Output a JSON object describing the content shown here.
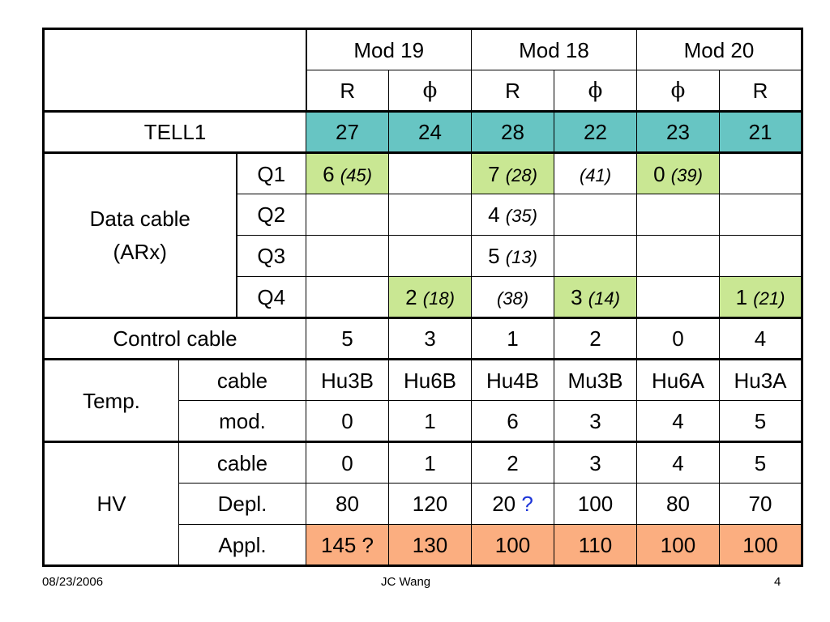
{
  "header": {
    "mods": [
      "Mod 19",
      "Mod 18",
      "Mod 20"
    ],
    "sub": [
      "R",
      "ϕ",
      "R",
      "ϕ",
      "ϕ",
      "R"
    ]
  },
  "tell1": {
    "label": "TELL1",
    "values": [
      "27",
      "24",
      "28",
      "22",
      "23",
      "21"
    ]
  },
  "data_cable": {
    "label_line1": "Data cable",
    "label_line2": "(ARx)",
    "rows": [
      {
        "q": "Q1",
        "cells": [
          {
            "main": "6",
            "paren": "(45)",
            "hl": "green"
          },
          {
            "main": "",
            "paren": "",
            "hl": ""
          },
          {
            "main": "7",
            "paren": "(28)",
            "hl": "green"
          },
          {
            "main": "",
            "paren": "(41)",
            "hl": ""
          },
          {
            "main": "0",
            "paren": "(39)",
            "hl": "green"
          },
          {
            "main": "",
            "paren": "",
            "hl": ""
          }
        ]
      },
      {
        "q": "Q2",
        "cells": [
          {
            "main": "",
            "paren": "",
            "hl": ""
          },
          {
            "main": "",
            "paren": "",
            "hl": ""
          },
          {
            "main": "4",
            "paren": "(35)",
            "hl": ""
          },
          {
            "main": "",
            "paren": "",
            "hl": ""
          },
          {
            "main": "",
            "paren": "",
            "hl": ""
          },
          {
            "main": "",
            "paren": "",
            "hl": ""
          }
        ]
      },
      {
        "q": "Q3",
        "cells": [
          {
            "main": "",
            "paren": "",
            "hl": ""
          },
          {
            "main": "",
            "paren": "",
            "hl": ""
          },
          {
            "main": "5",
            "paren": "(13)",
            "hl": ""
          },
          {
            "main": "",
            "paren": "",
            "hl": ""
          },
          {
            "main": "",
            "paren": "",
            "hl": ""
          },
          {
            "main": "",
            "paren": "",
            "hl": ""
          }
        ]
      },
      {
        "q": "Q4",
        "cells": [
          {
            "main": "",
            "paren": "",
            "hl": ""
          },
          {
            "main": "2",
            "paren": "(18)",
            "hl": "green"
          },
          {
            "main": "",
            "paren": "(38)",
            "hl": ""
          },
          {
            "main": "3",
            "paren": "(14)",
            "hl": "green"
          },
          {
            "main": "",
            "paren": "",
            "hl": ""
          },
          {
            "main": "1",
            "paren": "(21)",
            "hl": "green"
          }
        ]
      }
    ]
  },
  "control_cable": {
    "label": "Control cable",
    "values": [
      "5",
      "3",
      "1",
      "2",
      "0",
      "4"
    ]
  },
  "temp": {
    "label": "Temp.",
    "cable_label": "cable",
    "cable_values": [
      "Hu3B",
      "Hu6B",
      "Hu4B",
      "Mu3B",
      "Hu6A",
      "Hu3A"
    ],
    "mod_label": "mod.",
    "mod_values": [
      "0",
      "1",
      "6",
      "3",
      "4",
      "5"
    ]
  },
  "hv": {
    "label": "HV",
    "cable_label": "cable",
    "cable_values": [
      "0",
      "1",
      "2",
      "3",
      "4",
      "5"
    ],
    "depl_label": "Depl.",
    "depl_values": [
      "80",
      "120",
      "20",
      "100",
      "80",
      "70"
    ],
    "depl_question": "?",
    "appl_label": "Appl.",
    "appl_values": [
      "145 ?",
      "130",
      "100",
      "110",
      "100",
      "100"
    ]
  },
  "footer": {
    "date": "08/23/2006",
    "author": "JC Wang",
    "page": "4"
  },
  "colors": {
    "teal": "#67c5c3",
    "green": "#c9e793",
    "orange": "#fbae80",
    "question": "#1d35d8"
  }
}
